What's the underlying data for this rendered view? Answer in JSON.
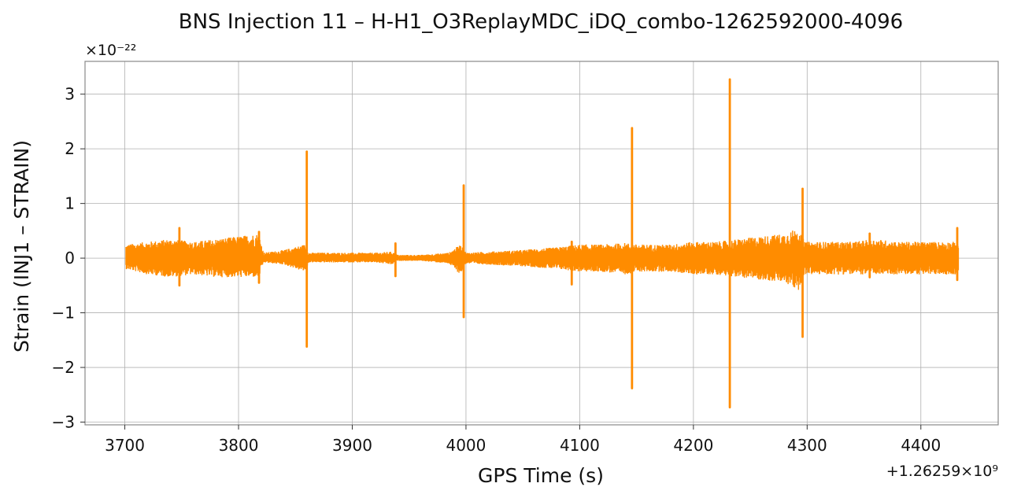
{
  "chart_data": {
    "type": "line",
    "title": "BNS Injection 11 – H-H1_O3ReplayMDC_iDQ_combo-1262592000-4096",
    "xlabel": "GPS Time (s)",
    "ylabel": "Strain (INJ1 – STRAIN)",
    "x_offset_label": "+1.26259×10⁹",
    "y_scale_label": "×10⁻²²",
    "xlim": [
      3665,
      4468
    ],
    "ylim": [
      -3.05,
      3.6
    ],
    "x_ticks": [
      3700,
      3800,
      3900,
      4000,
      4100,
      4200,
      4300,
      4400
    ],
    "y_ticks": [
      -3,
      -2,
      -1,
      0,
      1,
      2,
      3
    ],
    "x_tick_labels": [
      "3700",
      "3800",
      "3900",
      "4000",
      "4100",
      "4200",
      "4300",
      "4400"
    ],
    "y_tick_labels": [
      "−3",
      "−2",
      "−1",
      "0",
      "1",
      "2",
      "3"
    ],
    "grid": true,
    "color": "#ff8c00",
    "series": [
      {
        "envelope": {
          "x": [
            3701,
            3720,
            3740,
            3760,
            3780,
            3800,
            3818,
            3822,
            3840,
            3858,
            3862,
            3880,
            3900,
            3920,
            3935,
            3940,
            3960,
            3985,
            3995,
            4000,
            4020,
            4050,
            4080,
            4100,
            4120,
            4140,
            4150,
            4180,
            4200,
            4220,
            4240,
            4260,
            4280,
            4292,
            4298,
            4320,
            4340,
            4360,
            4380,
            4400,
            4420,
            4433
          ],
          "upper": [
            0.25,
            0.3,
            0.35,
            0.3,
            0.35,
            0.4,
            0.45,
            0.1,
            0.15,
            0.25,
            0.1,
            0.1,
            0.1,
            0.1,
            0.12,
            0.06,
            0.06,
            0.1,
            0.25,
            0.1,
            0.12,
            0.15,
            0.2,
            0.25,
            0.25,
            0.28,
            0.25,
            0.25,
            0.3,
            0.3,
            0.35,
            0.4,
            0.45,
            0.55,
            0.3,
            0.3,
            0.3,
            0.35,
            0.3,
            0.3,
            0.3,
            0.3
          ],
          "lower": [
            -0.2,
            -0.3,
            -0.35,
            -0.3,
            -0.35,
            -0.35,
            -0.35,
            -0.08,
            -0.12,
            -0.25,
            -0.08,
            -0.08,
            -0.08,
            -0.08,
            -0.12,
            -0.05,
            -0.05,
            -0.1,
            -0.3,
            -0.1,
            -0.12,
            -0.15,
            -0.2,
            -0.25,
            -0.25,
            -0.3,
            -0.25,
            -0.25,
            -0.3,
            -0.3,
            -0.35,
            -0.4,
            -0.45,
            -0.6,
            -0.3,
            -0.3,
            -0.3,
            -0.3,
            -0.3,
            -0.3,
            -0.3,
            -0.3
          ]
        },
        "spikes": [
          {
            "x": 3748,
            "max": 0.55,
            "min": -0.5
          },
          {
            "x": 3818,
            "max": 0.48,
            "min": -0.45
          },
          {
            "x": 3860,
            "max": 1.95,
            "min": -1.62
          },
          {
            "x": 3938,
            "max": 0.27,
            "min": -0.33
          },
          {
            "x": 3998,
            "max": 1.33,
            "min": -1.08
          },
          {
            "x": 4093,
            "max": 0.3,
            "min": -0.48
          },
          {
            "x": 4146,
            "max": 2.38,
            "min": -2.38
          },
          {
            "x": 4232,
            "max": 3.27,
            "min": -2.73
          },
          {
            "x": 4296,
            "max": 1.27,
            "min": -1.44
          },
          {
            "x": 4355,
            "max": 0.45,
            "min": -0.35
          },
          {
            "x": 4432,
            "max": 0.55,
            "min": -0.4
          }
        ]
      }
    ]
  }
}
